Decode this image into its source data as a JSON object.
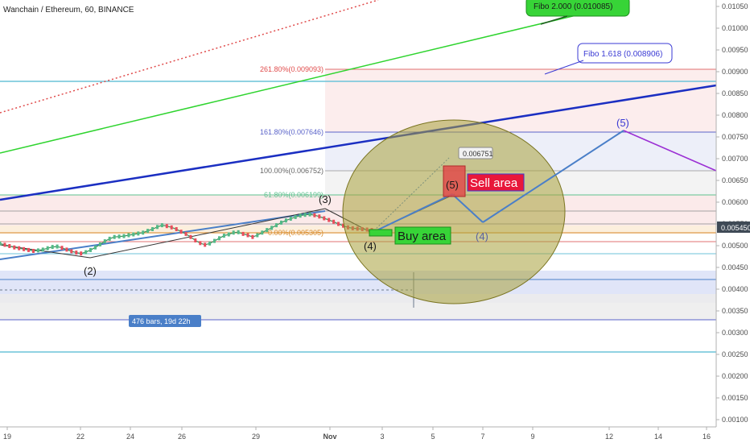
{
  "header": {
    "symbol": "Wanchain / Ethereum, 60, BINANCE"
  },
  "colors": {
    "fib_red": "#e04b4b",
    "fib_blue": "#5a63c9",
    "channel_blue": "#1b2fc2",
    "green_line": "#2fd42f",
    "price_blue": "#4a7fc8",
    "bubble": "#a8a03a",
    "last_price_bg": "#3f4a56"
  },
  "chart_data": {
    "type": "line",
    "title": "Wanchain / Ethereum, 60, BINANCE",
    "y_axis": {
      "ticks": [
        "0.01050",
        "0.01000",
        "0.00950",
        "0.00900",
        "0.00850",
        "0.00800",
        "0.00750",
        "0.00700",
        "0.00650",
        "0.00600",
        "0.00550",
        "0.00500",
        "0.00450",
        "0.00400",
        "0.00350",
        "0.00300",
        "0.00250",
        "0.00200",
        "0.00150",
        "0.00100"
      ],
      "ylim": [
        0.00095,
        0.0106
      ],
      "last_price": "0.005450"
    },
    "x_axis": {
      "ticks": [
        "19",
        "22",
        "24",
        "26",
        "29",
        "Nov",
        "3",
        "5",
        "7",
        "9",
        "12",
        "14",
        "16"
      ]
    },
    "price_series": {
      "name": "",
      "y": [
        0.00505,
        0.00502,
        0.00499,
        0.00496,
        0.00494,
        0.00492,
        0.0049,
        0.00488,
        0.00489,
        0.00491,
        0.00494,
        0.00497,
        0.00498,
        0.00495,
        0.00491,
        0.00487,
        0.00484,
        0.00482,
        0.00485,
        0.0049,
        0.00496,
        0.00503,
        0.0051,
        0.00516,
        0.0052,
        0.00521,
        0.00522,
        0.00524,
        0.00526,
        0.00528,
        0.0053,
        0.00534,
        0.00538,
        0.00543,
        0.00547,
        0.00545,
        0.00542,
        0.00538,
        0.00532,
        0.00527,
        0.0052,
        0.00512,
        0.00506,
        0.00502,
        0.00505,
        0.00511,
        0.00517,
        0.00523,
        0.00526,
        0.0053,
        0.00531,
        0.00527,
        0.00524,
        0.0052,
        0.00524,
        0.0053,
        0.00536,
        0.00541,
        0.00547,
        0.00553,
        0.00558,
        0.00562,
        0.00566,
        0.00569,
        0.00571,
        0.00572,
        0.0057,
        0.00567,
        0.00563,
        0.00559,
        0.00555,
        0.0055,
        0.00546,
        0.00542,
        0.0054,
        0.00539,
        0.00538,
        0.00537,
        0.00536
      ]
    },
    "fib_levels": [
      {
        "label": "261.80%(0.009093)",
        "value": 0.009093,
        "color": "#e04b4b"
      },
      {
        "label": "161.80%(0.007646)",
        "value": 0.007646,
        "color": "#5a63c9"
      },
      {
        "label": "100.00%(0.006752)",
        "value": 0.006752,
        "color": "#888888"
      },
      {
        "label": "61.80%(0.006199)",
        "value": 0.006199,
        "color": "#5ec18f"
      },
      {
        "label": "0.00%(0.005305)",
        "value": 0.005305,
        "color": "#d88a2a"
      }
    ],
    "callouts": [
      {
        "text": "Fibo 2.000 (0.010085)"
      },
      {
        "text": "Fibo 1.618 (0.008906)"
      },
      {
        "text": "0.006751"
      }
    ],
    "wave_labels": [
      {
        "text": "(2)"
      },
      {
        "text": "(3)"
      },
      {
        "text": "(4)"
      },
      {
        "text": "(5)"
      },
      {
        "text": "(5)"
      },
      {
        "text": "(4)"
      }
    ],
    "annotations": {
      "buy_area": "Buy area",
      "sell_area": "Sell area",
      "range_info": "476 bars, 19d 22h"
    }
  }
}
